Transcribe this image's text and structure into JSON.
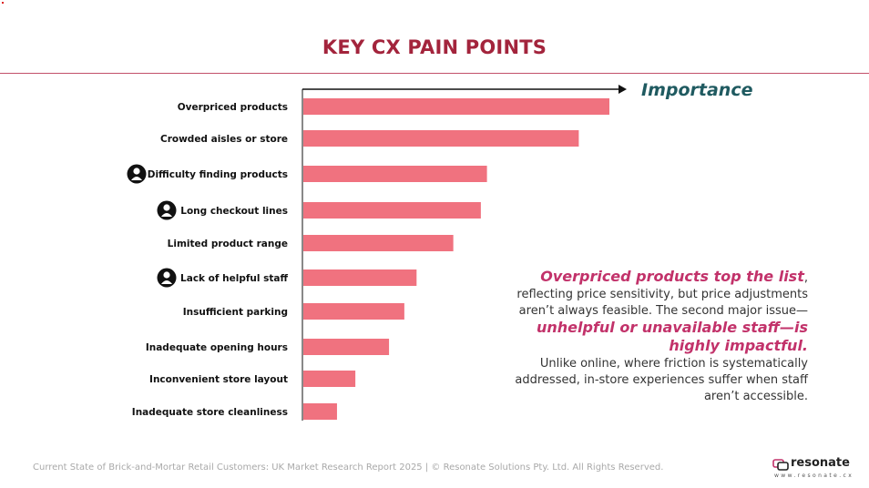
{
  "title": "KEY CX PAIN POINTS",
  "colors": {
    "bar": "#f0727f",
    "title": "#a3243c",
    "axis_label": "#1f5a60",
    "highlight": "#c2326a",
    "footer": "#a9a9a9"
  },
  "chart_data": {
    "type": "bar",
    "orientation": "horizontal",
    "xlabel": "Importance",
    "ylabel": "",
    "xlim": [
      0,
      100
    ],
    "categories": [
      "Overpriced products",
      "Crowded aisles or store",
      "Difficulty finding products",
      "Long checkout lines",
      "Limited product range",
      "Lack of helpful staff",
      "Insufficient parking",
      "Inadequate opening hours",
      "Inconvenient store layout",
      "Inadequate store cleanliness"
    ],
    "values": [
      100,
      90,
      60,
      58,
      49,
      37,
      33,
      28,
      17,
      11
    ],
    "staff_icon": [
      false,
      false,
      true,
      true,
      false,
      true,
      false,
      false,
      false,
      false
    ],
    "icon": "person-icon"
  },
  "callout": {
    "p1_highlight": "Overpriced products top the list",
    "p1_rest": ", reflecting price sensitivity, but price adjustments aren’t always feasible. The second major issue—",
    "p2_highlight": "unhelpful or unavailable staff—is highly impactful.",
    "p3": "Unlike online, where friction is systematically addressed, in-store experiences suffer when staff aren’t accessible."
  },
  "footer": "Current State of Brick-and-Mortar Retail Customers: UK Market Research Report 2025 | © Resonate Solutions Pty. Ltd. All Rights Reserved.",
  "logo": {
    "name": "resonate",
    "url": "www.resonate.cx",
    "icon": "resonate-logo-icon"
  }
}
